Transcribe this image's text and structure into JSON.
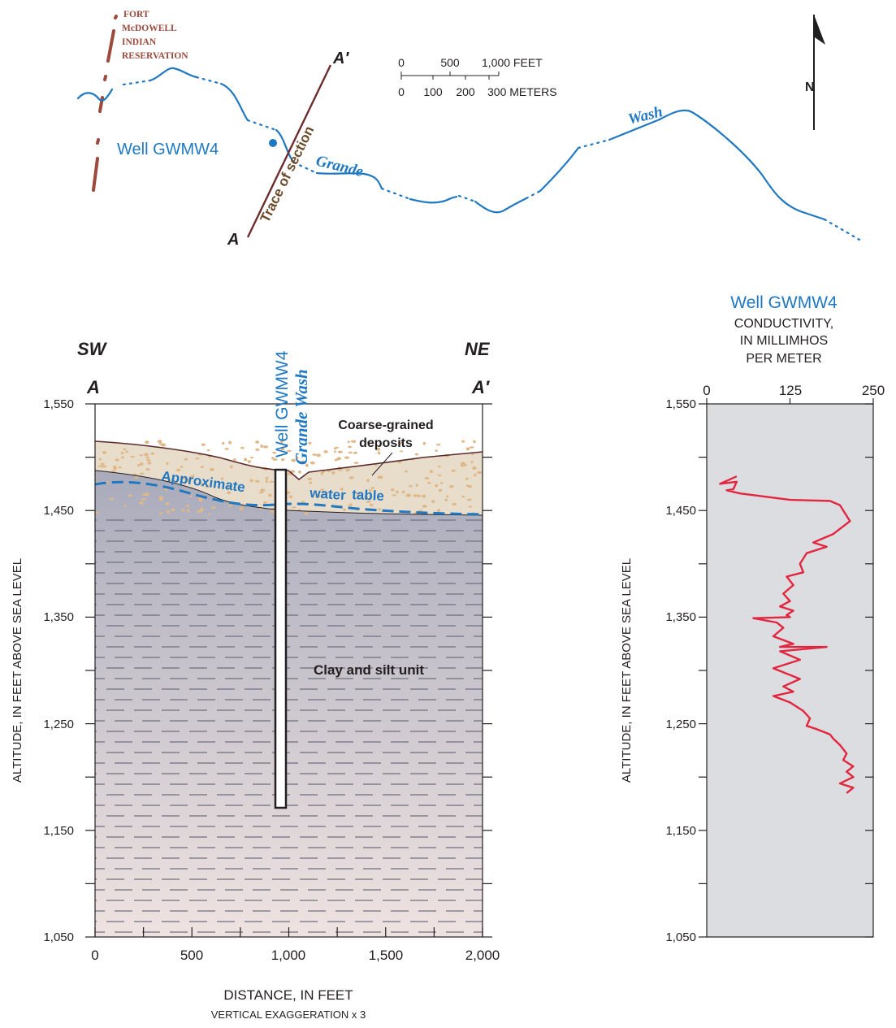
{
  "map": {
    "reservation_label": [
      "FORT",
      "McDOWELL",
      "INDIAN",
      "RESERVATION"
    ],
    "well_label": "Well GWMW4",
    "trace_label": "Trace of section",
    "end_a": "A",
    "end_a_prime": "A′",
    "wash_word_1": "Grande",
    "wash_word_2": "Wash",
    "north_label": "N",
    "scale_feet_ticks": [
      "0",
      "500",
      "1,000 FEET"
    ],
    "scale_meter_ticks": [
      "0",
      "100",
      "200",
      "300 METERS"
    ]
  },
  "section": {
    "left_direction": "SW",
    "right_direction": "NE",
    "left_end": "A",
    "right_end": "A′",
    "well_label": "Well GWMW4",
    "wash_label": "Grande Wash",
    "coarse_label_line1": "Coarse-grained",
    "coarse_label_line2": "deposits",
    "water_table_word_1": "Approximate",
    "water_table_word_2": "water",
    "water_table_word_3": "table",
    "clay_label": "Clay and silt unit",
    "y_axis_label": "ALTITUDE, IN FEET ABOVE SEA LEVEL",
    "x_axis_label": "DISTANCE, IN FEET",
    "exaggeration_note": "VERTICAL EXAGGERATION x 3",
    "y_ticks": [
      "1,050",
      "1,150",
      "1,250",
      "1,350",
      "1,450",
      "1,550"
    ],
    "x_ticks": [
      "0",
      "500",
      "1,000",
      "1,500",
      "2,000"
    ]
  },
  "log": {
    "title": "Well GWMW4",
    "subtitle_line1": "CONDUCTIVITY,",
    "subtitle_line2": "IN MILLIMHOS",
    "subtitle_line3": "PER METER",
    "y_axis_label": "ALTITUDE, IN FEET ABOVE SEA LEVEL",
    "x_ticks": [
      "0",
      "125",
      "250"
    ],
    "y_ticks": [
      "1,050",
      "1,150",
      "1,250",
      "1,350",
      "1,450",
      "1,550"
    ]
  },
  "colors": {
    "river": "#1f78c1",
    "trace_line": "#6b2d2d",
    "reservation": "#9b4a3c",
    "sediment": "#e8dccb",
    "clay_top": "#a9abbb",
    "clay_bottom": "#efe3e1",
    "log_curve": "#e3263f",
    "log_background": "#dcdde0"
  },
  "chart_data": {
    "type": "line",
    "x_unit": "CONDUCTIVITY, IN MILLIMHOS PER METER",
    "y_unit": "ALTITUDE, IN FEET ABOVE SEA LEVEL",
    "xlim": [
      0,
      250
    ],
    "ylim": [
      1050,
      1550
    ],
    "x": [
      45,
      20,
      45,
      40,
      30,
      50,
      125,
      185,
      200,
      215,
      190,
      160,
      180,
      150,
      140,
      145,
      120,
      130,
      115,
      125,
      110,
      130,
      120,
      125,
      70,
      105,
      115,
      100,
      130,
      110,
      180,
      110,
      140,
      100,
      140,
      115,
      130,
      100,
      125,
      145,
      155,
      150,
      165,
      185,
      190,
      200,
      210,
      205,
      220,
      210,
      220,
      200,
      220,
      210
    ],
    "y": [
      1482,
      1475,
      1477,
      1470,
      1469,
      1466,
      1460,
      1459,
      1455,
      1440,
      1428,
      1420,
      1416,
      1410,
      1400,
      1392,
      1388,
      1380,
      1372,
      1365,
      1360,
      1356,
      1352,
      1350,
      1349,
      1345,
      1340,
      1332,
      1325,
      1322,
      1322,
      1318,
      1310,
      1302,
      1292,
      1285,
      1280,
      1276,
      1270,
      1262,
      1255,
      1248,
      1245,
      1240,
      1236,
      1230,
      1222,
      1216,
      1210,
      1205,
      1200,
      1194,
      1190,
      1185
    ]
  }
}
